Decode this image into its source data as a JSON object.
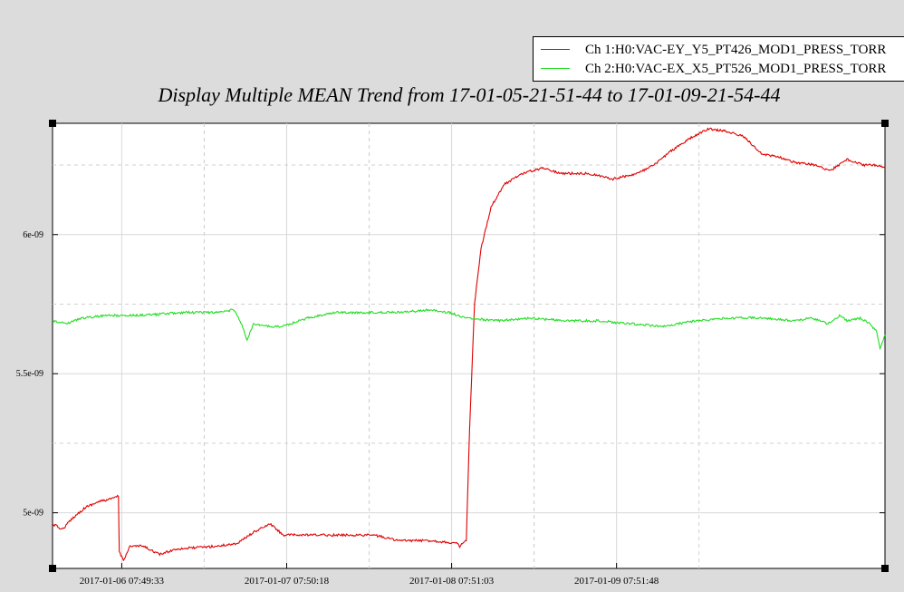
{
  "chart_data": {
    "type": "line",
    "title": "Display Multiple MEAN Trend from 17-01-05-21-51-44 to 17-01-09-21-54-44",
    "xlabel": "",
    "ylabel": "",
    "x_tick_labels": [
      "2017-01-06 07:49:33",
      "2017-01-07 07:50:18",
      "2017-01-08 07:51:03",
      "2017-01-09 07:51:48"
    ],
    "y_tick_labels": [
      "5e-09",
      "5.5e-09",
      "6e-09"
    ],
    "x_range_days": [
      0,
      4.0
    ],
    "ylim": [
      4.8e-09,
      6.4e-09
    ],
    "legend_position": "top-right",
    "grid": true,
    "series": [
      {
        "name": "Ch 1:H0:VAC-EY_Y5_PT426_MOD1_PRESS_TORR",
        "color": "#e00000",
        "points": [
          [
            0.0,
            4.96e-09
          ],
          [
            0.06,
            4.94e-09
          ],
          [
            0.12,
            4.98e-09
          ],
          [
            0.2,
            5.02e-09
          ],
          [
            0.28,
            5.04e-09
          ],
          [
            0.36,
            5.05e-09
          ],
          [
            0.4,
            5.06e-09
          ],
          [
            0.405,
            4.86e-09
          ],
          [
            0.43,
            4.83e-09
          ],
          [
            0.47,
            4.88e-09
          ],
          [
            0.55,
            4.88e-09
          ],
          [
            0.65,
            4.85e-09
          ],
          [
            0.75,
            4.87e-09
          ],
          [
            1.0,
            4.88e-09
          ],
          [
            1.12,
            4.89e-09
          ],
          [
            1.22,
            4.93e-09
          ],
          [
            1.32,
            4.96e-09
          ],
          [
            1.4,
            4.92e-09
          ],
          [
            1.55,
            4.92e-09
          ],
          [
            1.75,
            4.92e-09
          ],
          [
            1.95,
            4.92e-09
          ],
          [
            2.1,
            4.9e-09
          ],
          [
            2.3,
            4.9e-09
          ],
          [
            2.45,
            4.89e-09
          ],
          [
            2.47,
            4.88e-09
          ],
          [
            2.51,
            4.9e-09
          ],
          [
            2.53,
            5.3e-09
          ],
          [
            2.56,
            5.75e-09
          ],
          [
            2.6,
            5.95e-09
          ],
          [
            2.66,
            6.1e-09
          ],
          [
            2.74,
            6.18e-09
          ],
          [
            2.85,
            6.22e-09
          ],
          [
            2.98,
            6.24e-09
          ],
          [
            3.08,
            6.22e-09
          ],
          [
            3.25,
            6.22e-09
          ],
          [
            3.4,
            6.2e-09
          ],
          [
            3.55,
            6.22e-09
          ],
          [
            3.65,
            6.25e-09
          ],
          [
            3.75,
            6.3e-09
          ],
          [
            3.88,
            6.35e-09
          ],
          [
            3.98,
            6.38e-09
          ],
          [
            4.1,
            6.37e-09
          ],
          [
            4.2,
            6.35e-09
          ],
          [
            4.3,
            6.29e-09
          ],
          [
            4.4,
            6.28e-09
          ],
          [
            4.5,
            6.26e-09
          ],
          [
            4.62,
            6.25e-09
          ],
          [
            4.72,
            6.23e-09
          ],
          [
            4.82,
            6.27e-09
          ],
          [
            4.92,
            6.25e-09
          ],
          [
            5.0,
            6.25e-09
          ],
          [
            5.05,
            6.24e-09
          ]
        ]
      },
      {
        "name": "Ch 2:H0:VAC-EX_X5_PT526_MOD1_PRESS_TORR",
        "color": "#22dd22",
        "points": [
          [
            0.0,
            5.69e-09
          ],
          [
            0.08,
            5.68e-09
          ],
          [
            0.18,
            5.7e-09
          ],
          [
            0.35,
            5.71e-09
          ],
          [
            0.55,
            5.71e-09
          ],
          [
            0.8,
            5.72e-09
          ],
          [
            1.0,
            5.72e-09
          ],
          [
            1.1,
            5.73e-09
          ],
          [
            1.12,
            5.71e-09
          ],
          [
            1.16,
            5.66e-09
          ],
          [
            1.18,
            5.62e-09
          ],
          [
            1.22,
            5.68e-09
          ],
          [
            1.3,
            5.67e-09
          ],
          [
            1.4,
            5.67e-09
          ],
          [
            1.55,
            5.7e-09
          ],
          [
            1.72,
            5.72e-09
          ],
          [
            1.9,
            5.72e-09
          ],
          [
            2.1,
            5.72e-09
          ],
          [
            2.3,
            5.73e-09
          ],
          [
            2.4,
            5.72e-09
          ],
          [
            2.52,
            5.7e-09
          ],
          [
            2.7,
            5.69e-09
          ],
          [
            2.9,
            5.7e-09
          ],
          [
            3.1,
            5.69e-09
          ],
          [
            3.3,
            5.69e-09
          ],
          [
            3.5,
            5.68e-09
          ],
          [
            3.7,
            5.67e-09
          ],
          [
            3.9,
            5.69e-09
          ],
          [
            4.1,
            5.7e-09
          ],
          [
            4.3,
            5.7e-09
          ],
          [
            4.5,
            5.69e-09
          ],
          [
            4.6,
            5.7e-09
          ],
          [
            4.7,
            5.68e-09
          ],
          [
            4.78,
            5.71e-09
          ],
          [
            4.82,
            5.69e-09
          ],
          [
            4.9,
            5.7e-09
          ],
          [
            4.96,
            5.68e-09
          ],
          [
            5.0,
            5.65e-09
          ],
          [
            5.02,
            5.59e-09
          ],
          [
            5.05,
            5.64e-09
          ]
        ]
      }
    ]
  }
}
